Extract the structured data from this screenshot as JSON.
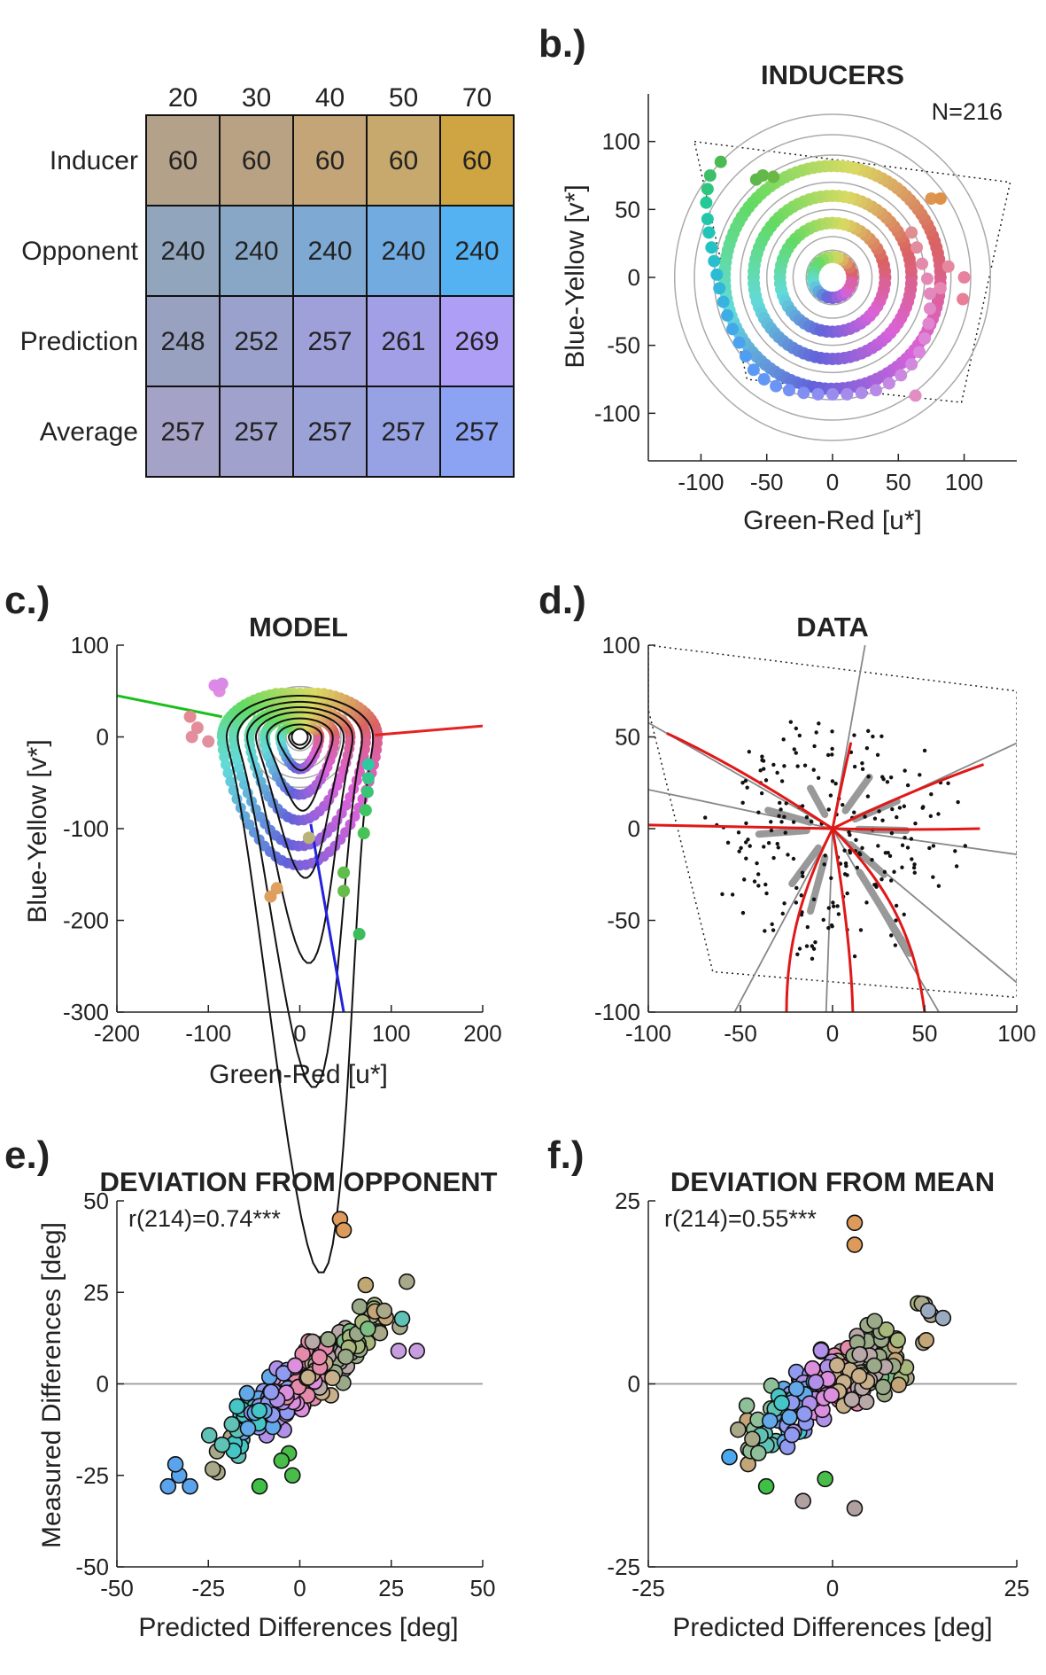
{
  "chart_data": [
    {
      "panel": "",
      "type": "table",
      "columns": [
        "20",
        "30",
        "40",
        "50",
        "70"
      ],
      "rows": [
        {
          "label": "Inducer",
          "values": [
            "60",
            "60",
            "60",
            "60",
            "60"
          ],
          "colors": [
            "#b4a189",
            "#b9a283",
            "#c3a577",
            "#c7a86d",
            "#cfa543"
          ]
        },
        {
          "label": "Opponent",
          "values": [
            "240",
            "240",
            "240",
            "240",
            "240"
          ],
          "colors": [
            "#91a5bc",
            "#88a7c7",
            "#7ea9d3",
            "#72abe0",
            "#55b2f2"
          ]
        },
        {
          "label": "Prediction",
          "values": [
            "248",
            "252",
            "257",
            "261",
            "269"
          ],
          "colors": [
            "#99a1c1",
            "#9ba1cd",
            "#9fa0d9",
            "#a39fe6",
            "#ae9ef6"
          ]
        },
        {
          "label": "Average",
          "values": [
            "257",
            "257",
            "257",
            "257",
            "257"
          ],
          "colors": [
            "#a4a2c7",
            "#a0a2cd",
            "#9ba2d8",
            "#96a2e3",
            "#8ca2f2"
          ]
        }
      ]
    },
    {
      "panel": "b.)",
      "type": "scatter",
      "title": "INDUCERS",
      "annotation": "N=216",
      "xlabel": "Green-Red [u*]",
      "ylabel": "Blue-Yellow [v*]",
      "xlim": [
        -140,
        140
      ],
      "ylim": [
        -135,
        135
      ],
      "xticks": [
        -100,
        -50,
        0,
        50,
        100
      ],
      "yticks": [
        100,
        50,
        0,
        -50,
        -100
      ],
      "gamut": [
        [
          -105,
          100
        ],
        [
          135,
          70
        ],
        [
          98,
          -92
        ],
        [
          -65,
          -75
        ]
      ],
      "rings_radius": [
        20,
        30,
        40,
        50,
        60,
        70,
        80,
        90,
        105,
        120
      ],
      "inner_rings": [
        [
          15,
          "hue"
        ],
        [
          40,
          "hue"
        ],
        [
          60,
          "hue"
        ],
        [
          82,
          "hue"
        ]
      ],
      "outer_points": [
        {
          "u": -85,
          "v": 85,
          "color": "#4cba52"
        },
        {
          "u": -93,
          "v": 75,
          "color": "#3cbf67"
        },
        {
          "u": -95,
          "v": 65,
          "color": "#2ec57f"
        },
        {
          "u": -96,
          "v": 55,
          "color": "#25c896"
        },
        {
          "u": -95,
          "v": 43,
          "color": "#22c7aa"
        },
        {
          "u": -94,
          "v": 33,
          "color": "#22c4b9"
        },
        {
          "u": -92,
          "v": 22,
          "color": "#25c2c4"
        },
        {
          "u": -90,
          "v": 12,
          "color": "#28bfcc"
        },
        {
          "u": -88,
          "v": 2,
          "color": "#2cbbd4"
        },
        {
          "u": -86,
          "v": -8,
          "color": "#32b7da"
        },
        {
          "u": -83,
          "v": -18,
          "color": "#38b2e0"
        },
        {
          "u": -80,
          "v": -28,
          "color": "#3eade5"
        },
        {
          "u": -76,
          "v": -38,
          "color": "#43a8ea"
        },
        {
          "u": -71,
          "v": -48,
          "color": "#4aa3ee"
        },
        {
          "u": -66,
          "v": -58,
          "color": "#509ef2"
        },
        {
          "u": -60,
          "v": -68,
          "color": "#589af5"
        },
        {
          "u": -52,
          "v": -75,
          "color": "#6197f6"
        },
        {
          "u": -43,
          "v": -80,
          "color": "#6b94f6"
        },
        {
          "u": -33,
          "v": -83,
          "color": "#7691f5"
        },
        {
          "u": -22,
          "v": -85,
          "color": "#818ff3"
        },
        {
          "u": -11,
          "v": -86,
          "color": "#8c8ef1"
        },
        {
          "u": 0,
          "v": -86,
          "color": "#988dee"
        },
        {
          "u": 11,
          "v": -86,
          "color": "#a38cec"
        },
        {
          "u": 22,
          "v": -85,
          "color": "#ad8bea"
        },
        {
          "u": 33,
          "v": -83,
          "color": "#b88ae8"
        },
        {
          "u": 43,
          "v": -78,
          "color": "#c389e5"
        },
        {
          "u": 52,
          "v": -72,
          "color": "#cd88e2"
        },
        {
          "u": 60,
          "v": -64,
          "color": "#d487df"
        },
        {
          "u": 66,
          "v": -55,
          "color": "#d986dc"
        },
        {
          "u": 70,
          "v": -45,
          "color": "#dd86d7"
        },
        {
          "u": 73,
          "v": -34,
          "color": "#e086d0"
        },
        {
          "u": 74,
          "v": -23,
          "color": "#e287c8"
        },
        {
          "u": 74,
          "v": -12,
          "color": "#e388bf"
        },
        {
          "u": 72,
          "v": -1,
          "color": "#e489b5"
        },
        {
          "u": 68,
          "v": 10,
          "color": "#e48aab"
        },
        {
          "u": 64,
          "v": 22,
          "color": "#e38ca0"
        },
        {
          "u": 60,
          "v": 33,
          "color": "#e08e92"
        },
        {
          "u": -58,
          "v": 72,
          "color": "#5cb84a"
        },
        {
          "u": -53,
          "v": 75,
          "color": "#62b848"
        },
        {
          "u": 75,
          "v": 58,
          "color": "#dd9550"
        },
        {
          "u": 82,
          "v": 58,
          "color": "#df9148"
        },
        {
          "u": 82,
          "v": -8,
          "color": "#e587b2"
        },
        {
          "u": 100,
          "v": 0,
          "color": "#e7819f"
        },
        {
          "u": 88,
          "v": 8,
          "color": "#e6869f"
        },
        {
          "u": 99,
          "v": -16,
          "color": "#e87f97"
        },
        {
          "u": 63,
          "v": -87,
          "color": "#e28ec4"
        },
        {
          "u": -45,
          "v": 74,
          "color": "#6ab846"
        }
      ]
    },
    {
      "panel": "c.)",
      "type": "line",
      "title": "MODEL",
      "xlabel": "Green-Red [u*]",
      "ylabel": "Blue-Yellow [v*]",
      "xlim": [
        -200,
        200
      ],
      "ylim": [
        -300,
        100
      ],
      "xticks": [
        -200,
        -100,
        0,
        100,
        200
      ],
      "yticks": [
        100,
        0,
        -100,
        -200,
        -300
      ],
      "axis_lines": [
        {
          "color": "#1abf1a",
          "points": [
            [
              -200,
              45
            ],
            [
              -85,
              22
            ]
          ]
        },
        {
          "color": "#e62222",
          "points": [
            [
              82,
              2
            ],
            [
              200,
              12
            ]
          ]
        },
        {
          "color": "#2222dd",
          "points": [
            [
              12,
              -95
            ],
            [
              48,
              -300
            ]
          ]
        }
      ],
      "side_points": [
        {
          "u": -120,
          "v": 22,
          "color": "#e58a92"
        },
        {
          "u": -112,
          "v": 10,
          "color": "#e48c98"
        },
        {
          "u": -118,
          "v": 0,
          "color": "#e28e9c"
        },
        {
          "u": -100,
          "v": -5,
          "color": "#e0909f"
        },
        {
          "u": -88,
          "v": 50,
          "color": "#de8de0"
        },
        {
          "u": -93,
          "v": 56,
          "color": "#dd88e8"
        },
        {
          "u": -85,
          "v": 58,
          "color": "#d98ae6"
        },
        {
          "u": 75,
          "v": -30,
          "color": "#2ec9a0"
        },
        {
          "u": 75,
          "v": -45,
          "color": "#33c78a"
        },
        {
          "u": 74,
          "v": -60,
          "color": "#38c574"
        },
        {
          "u": 72,
          "v": -80,
          "color": "#3ec463"
        },
        {
          "u": 70,
          "v": -105,
          "color": "#46c256"
        },
        {
          "u": 48,
          "v": -148,
          "color": "#5fbd4b"
        },
        {
          "u": 48,
          "v": -168,
          "color": "#65bc49"
        },
        {
          "u": 65,
          "v": -215,
          "color": "#3dbc5a"
        },
        {
          "u": -25,
          "v": -165,
          "color": "#e0a060"
        },
        {
          "u": -32,
          "v": -174,
          "color": "#df9e5e"
        },
        {
          "u": 10,
          "v": -110,
          "color": "#b9b37a"
        }
      ]
    },
    {
      "panel": "d.)",
      "type": "scatter",
      "title": "DATA",
      "xlabel": "",
      "ylabel": "",
      "xlim": [
        -100,
        100
      ],
      "ylim": [
        -100,
        100
      ],
      "xticks": [
        -100,
        -50,
        0,
        50,
        100
      ],
      "yticks": [
        100,
        50,
        0,
        -50,
        -100
      ],
      "gamut": [
        [
          -100,
          100
        ],
        [
          100,
          75
        ],
        [
          100,
          -92
        ],
        [
          -65,
          -78
        ],
        [
          -100,
          65
        ]
      ],
      "spokes_deg": [
        80,
        25,
        -8,
        -40,
        -60,
        -92,
        -118,
        168,
        150
      ],
      "red_curves": [
        [
          [
            0,
            0
          ],
          [
            -30,
            20
          ],
          [
            -60,
            38
          ],
          [
            -90,
            52
          ]
        ],
        [
          [
            0,
            0
          ],
          [
            -50,
            1
          ],
          [
            -100,
            2
          ]
        ],
        [
          [
            0,
            0
          ],
          [
            -15,
            -30
          ],
          [
            -25,
            -60
          ],
          [
            -25,
            -100
          ]
        ],
        [
          [
            0,
            0
          ],
          [
            10,
            -60
          ],
          [
            11,
            -100
          ]
        ],
        [
          [
            0,
            0
          ],
          [
            30,
            -30
          ],
          [
            45,
            -60
          ],
          [
            50,
            -100
          ]
        ],
        [
          [
            0,
            0
          ],
          [
            40,
            -1
          ],
          [
            80,
            0
          ]
        ],
        [
          [
            0,
            0
          ],
          [
            40,
            20
          ],
          [
            82,
            35
          ]
        ],
        [
          [
            0,
            0
          ],
          [
            5,
            25
          ],
          [
            10,
            47
          ]
        ]
      ]
    },
    {
      "panel": "e.)",
      "type": "scatter",
      "title": "DEVIATION FROM OPPONENT",
      "annotation": "r(214)=0.74***",
      "xlabel": "Predicted Differences [deg]",
      "ylabel": "Measured Differences [deg]",
      "xlim": [
        -50,
        50
      ],
      "ylim": [
        -50,
        50
      ],
      "xticks": [
        -50,
        -25,
        0,
        25,
        50
      ],
      "yticks": [
        50,
        25,
        0,
        -25,
        -50
      ],
      "highlight_points": [
        {
          "x": 11,
          "y": 45,
          "color": "#dd9a5a"
        },
        {
          "x": 12,
          "y": 42,
          "color": "#dd9a5a"
        },
        {
          "x": 18,
          "y": 27,
          "color": "#c0a872"
        },
        {
          "x": -36,
          "y": -28,
          "color": "#5aa4ee"
        },
        {
          "x": -33,
          "y": -25,
          "color": "#5aa4ee"
        },
        {
          "x": -30,
          "y": -28,
          "color": "#5aa4ee"
        },
        {
          "x": -34,
          "y": -22,
          "color": "#5aa4ee"
        },
        {
          "x": -11,
          "y": -28,
          "color": "#3fbf45"
        },
        {
          "x": -2,
          "y": -25,
          "color": "#48bd4a"
        },
        {
          "x": -3,
          "y": -19,
          "color": "#48bd4a"
        },
        {
          "x": -5,
          "y": -21,
          "color": "#48bd4a"
        },
        {
          "x": 32,
          "y": 9,
          "color": "#c89de0"
        },
        {
          "x": 27,
          "y": 9,
          "color": "#c89de0"
        }
      ]
    },
    {
      "panel": "f.)",
      "type": "scatter",
      "title": "DEVIATION FROM MEAN",
      "annotation": "r(214)=0.55***",
      "xlabel": "Predicted Differences [deg]",
      "ylabel": "",
      "xlim": [
        -25,
        25
      ],
      "ylim": [
        -25,
        25
      ],
      "xticks": [
        -25,
        0,
        25
      ],
      "yticks": [
        25,
        0,
        -25
      ],
      "highlight_points": [
        {
          "x": 3,
          "y": 22,
          "color": "#dd9a5a"
        },
        {
          "x": 3,
          "y": 19,
          "color": "#dd9a5a"
        },
        {
          "x": -14,
          "y": -10,
          "color": "#4ca8ee"
        },
        {
          "x": -9,
          "y": -14,
          "color": "#3fbf45"
        },
        {
          "x": 3,
          "y": -17,
          "color": "#b0a0a0"
        },
        {
          "x": -4,
          "y": -16,
          "color": "#b0a0a0"
        },
        {
          "x": -1,
          "y": -13,
          "color": "#48bd4a"
        },
        {
          "x": 13,
          "y": 10,
          "color": "#9aaabf"
        },
        {
          "x": 15,
          "y": 9,
          "color": "#9aaabf"
        }
      ]
    }
  ]
}
